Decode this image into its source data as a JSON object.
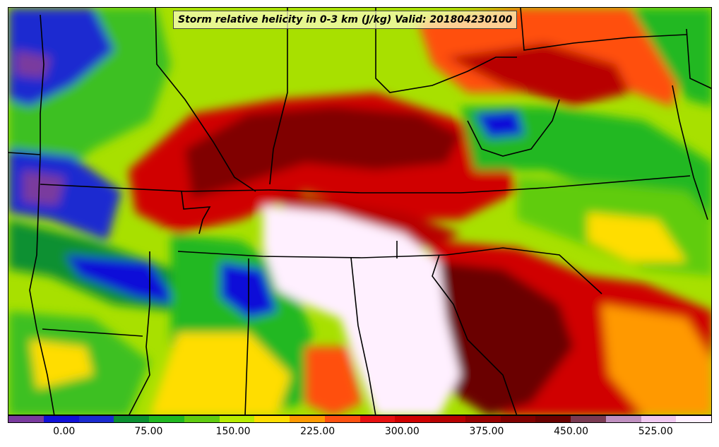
{
  "title": "Storm relative helicity in 0-3 km (J/kg) Valid: 201804230100",
  "colorbar": {
    "colors": [
      "#7a3a9e",
      "#1010d8",
      "#1a2ad0",
      "#0a9030",
      "#20b820",
      "#60cc10",
      "#b8ec00",
      "#ffdd00",
      "#ff9900",
      "#ff5010",
      "#e81010",
      "#d00000",
      "#b80000",
      "#980000",
      "#800000",
      "#6a0000",
      "#7a3a52",
      "#c090c0",
      "#f0c8f0",
      "#fff0ff"
    ],
    "min": -50,
    "max": 575,
    "tick_values": [
      0,
      75,
      150,
      225,
      300,
      375,
      450,
      525
    ],
    "tick_labels": [
      "0.00",
      "75.00",
      "150.00",
      "225.00",
      "300.00",
      "375.00",
      "450.00",
      "525.00"
    ]
  }
}
